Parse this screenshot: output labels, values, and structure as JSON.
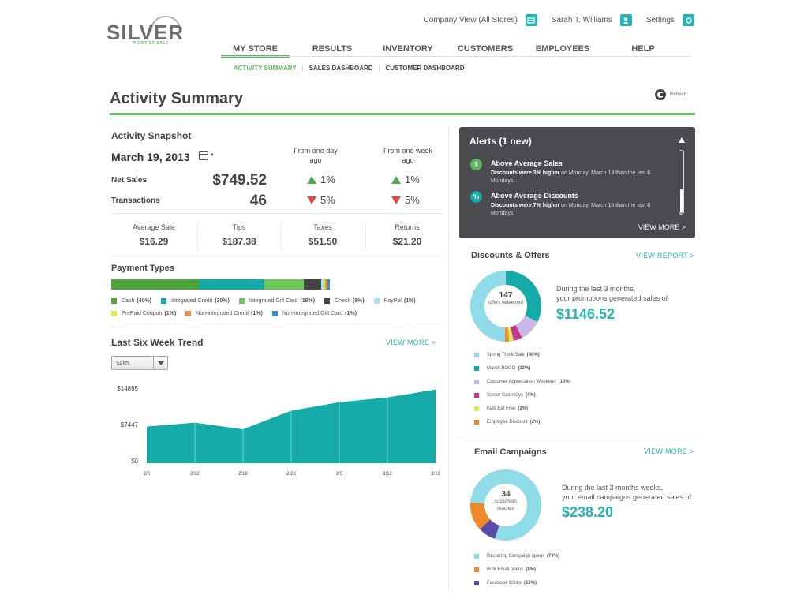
{
  "brand": {
    "name": "SILVER",
    "tagline": "POINT OF SALE"
  },
  "topbar": {
    "company_view": "Company View (All Stores)",
    "user": "Sarah T. Williams",
    "settings": "Settings"
  },
  "nav": {
    "items": [
      {
        "label": "MY STORE",
        "active": true
      },
      {
        "label": "RESULTS"
      },
      {
        "label": "INVENTORY"
      },
      {
        "label": "CUSTOMERS"
      },
      {
        "label": "EMPLOYEES"
      },
      {
        "label": "HELP"
      }
    ],
    "subitems": [
      {
        "label": "ACTIVITY SUMMARY",
        "active": true
      },
      {
        "label": "SALES DASHBOARD"
      },
      {
        "label": "CUSTOMER DASHBOARD"
      }
    ]
  },
  "page": {
    "title": "Activity Summary",
    "refresh_label": "Refresh"
  },
  "snapshot": {
    "title": "Activity Snapshot",
    "date": "March 19, 2013",
    "col_day": "From one day ago",
    "col_week": "From one week ago",
    "rows": [
      {
        "label": "Net Sales",
        "value": "$749.52",
        "day": "1%",
        "day_dir": "up",
        "week": "1%",
        "week_dir": "up"
      },
      {
        "label": "Transactions",
        "value": "46",
        "day": "5%",
        "day_dir": "down",
        "week": "5%",
        "week_dir": "down"
      }
    ],
    "stats": [
      {
        "label": "Average Sale",
        "value": "$16.29"
      },
      {
        "label": "Tips",
        "value": "$187.38"
      },
      {
        "label": "Taxes",
        "value": "$51.50"
      },
      {
        "label": "Returns",
        "value": "$21.20"
      }
    ]
  },
  "payment_types": {
    "title": "Payment Types",
    "items": [
      {
        "name": "Cash",
        "pct": "(40%)",
        "width": 40,
        "color": "#4ca63a"
      },
      {
        "name": "Integrated Credit",
        "pct": "(30%)",
        "width": 30,
        "color": "#13aaa8"
      },
      {
        "name": "Integrated Gift Card",
        "pct": "(18%)",
        "width": 18,
        "color": "#6cc95a"
      },
      {
        "name": "Check",
        "pct": "(8%)",
        "width": 8,
        "color": "#444444"
      },
      {
        "name": "PayPal",
        "pct": "(1%)",
        "width": 1,
        "color": "#a6e3ea"
      },
      {
        "name": "PrePaid Coupon",
        "pct": "(1%)",
        "width": 1,
        "color": "#d7ec4f"
      },
      {
        "name": "Non-integrated Credit",
        "pct": "(1%)",
        "width": 1,
        "color": "#ef8a3c"
      },
      {
        "name": "Non-integrated Gift Card",
        "pct": "(1%)",
        "width": 1,
        "color": "#3a8fc1"
      }
    ]
  },
  "trend": {
    "title": "Last Six Week Trend",
    "view_more": "VIEW MORE  >",
    "select_value": "Sales"
  },
  "chart_data": [
    {
      "type": "area",
      "title": "Last Six Week Trend",
      "series": [
        {
          "name": "Sales",
          "values": [
            6900,
            7650,
            6400,
            9900,
            11500,
            12400,
            13900
          ]
        }
      ],
      "x": [
        "2/5",
        "2/12",
        "2/19",
        "2/26",
        "3/5",
        "3/12",
        "3/19"
      ],
      "yticks": [
        "$14895",
        "$7447",
        "$0"
      ],
      "ylim": [
        0,
        14895
      ],
      "color": "#13aaa8"
    },
    {
      "type": "pie",
      "title": "Discounts & Offers",
      "categories": [
        "Spring Trunk Sale",
        "March BOGO",
        "Customer Appreciation Weekend",
        "Senior Saturdays",
        "Kids Eat Free",
        "Employee Discount"
      ],
      "values": [
        49,
        32,
        10,
        4,
        2,
        2
      ]
    },
    {
      "type": "pie",
      "title": "Email Campaigns",
      "categories": [
        "Recurring Campaign opens",
        "Bulk Email opens",
        "Facebook Clicks"
      ],
      "values": [
        79,
        8,
        13
      ]
    }
  ],
  "alerts": {
    "title": "Alerts (1 new)",
    "items": [
      {
        "icon": "$",
        "title": "Above Average Sales",
        "bold": "Discounts were 3% higher",
        "text": " on Monday, March 18 than the last 6 Mondays.",
        "color": "#5cb85c"
      },
      {
        "icon": "%",
        "title": "Above Average Discounts",
        "bold": "Discounts were 7% higher",
        "text": " on Monday, March 18 than the last 6 Mondays.",
        "color": "#13aaa8"
      }
    ],
    "view_more": "VIEW MORE  >"
  },
  "discounts": {
    "title": "Discounts & Offers",
    "link": "VIEW REPORT  >",
    "center_number": "147",
    "center_label": "offers redeemed",
    "text_line1": "During the last 3 months,",
    "text_line2": "your promotions generated sales of",
    "amount": "$1146.52",
    "legend": [
      {
        "name": "Spring Trunk Sale",
        "pct": "(49%)",
        "color": "#8fdbe8"
      },
      {
        "name": "March BOGO",
        "pct": "(32%)",
        "color": "#13aaa8"
      },
      {
        "name": "Customer Appreciation Weekend",
        "pct": "(10%)",
        "color": "#c9b6ea"
      },
      {
        "name": "Senior Saturdays",
        "pct": "(4%)",
        "color": "#c2388c"
      },
      {
        "name": "Kids Eat Free",
        "pct": "(2%)",
        "color": "#d8ec5a"
      },
      {
        "name": "Employee Discount",
        "pct": "(2%)",
        "color": "#ef8a2c"
      }
    ]
  },
  "email": {
    "title": "Email Campaigns",
    "link": "VIEW MORE  >",
    "center_number": "34",
    "center_label": "customers reached",
    "text_line1": "During the last 3 months weeks,",
    "text_line2": "your email campaigns generated sales of",
    "amount": "$238.20",
    "legend": [
      {
        "name": "Recurring Campaign opens",
        "pct": "(79%)",
        "color": "#8fdbe8"
      },
      {
        "name": "Bulk Email opens",
        "pct": "(8%)",
        "color": "#ef8a2c"
      },
      {
        "name": "Facebook Clicks",
        "pct": "(13%)",
        "color": "#5b4aa6"
      }
    ]
  }
}
